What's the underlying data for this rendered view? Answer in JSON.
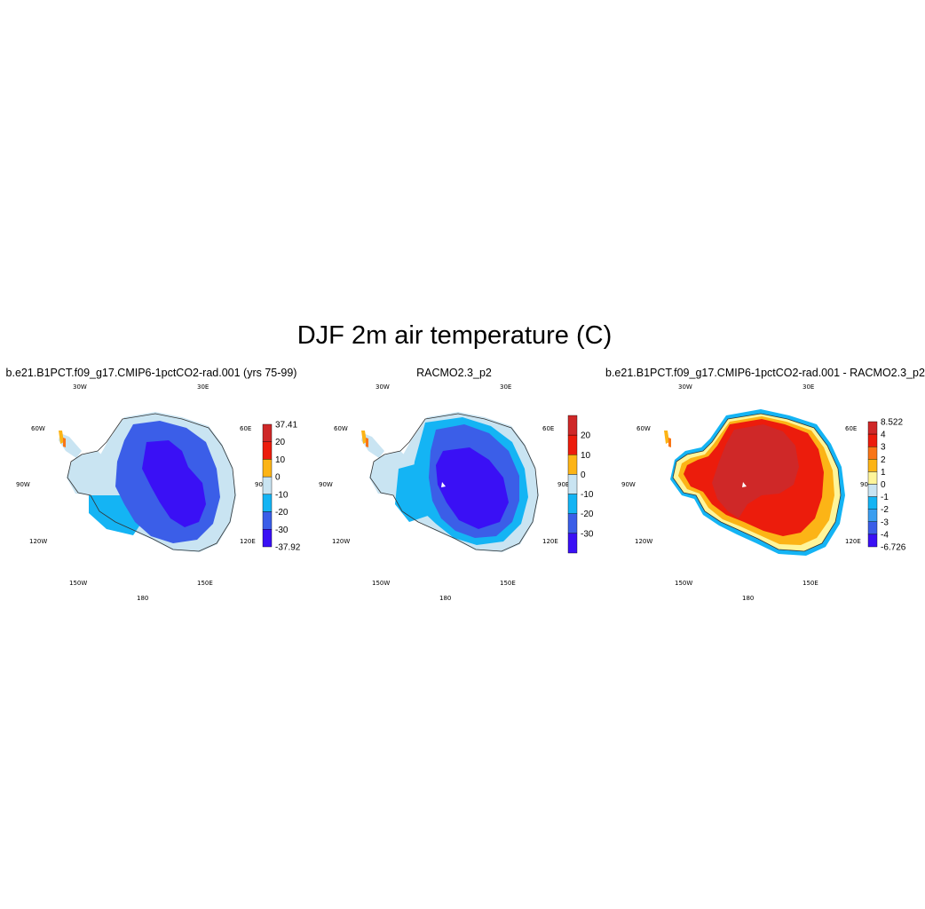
{
  "title": "DJF 2m air temperature (C)",
  "colors": {
    "cool": [
      "#3a10f5",
      "#3b5ee8",
      "#14b4f4",
      "#c9e4f2"
    ],
    "warm": [
      "#fef59a",
      "#fcb416",
      "#f97516",
      "#ec1c0c",
      "#cf2828"
    ]
  },
  "graticule_labels": {
    "lon_30w": "30W",
    "lon_30e": "30E",
    "lon_60w": "60W",
    "lon_60e": "60E",
    "lon_90w": "90W",
    "lon_90e": "90E",
    "lon_120w": "120W",
    "lon_120e": "120E",
    "lon_150w": "150W",
    "lon_150e": "150E",
    "lon_180": "180"
  },
  "panels": [
    {
      "title": "b.e21.B1PCT.f09_g17.CMIP6-1pctCO2-rad.001 (yrs 75-99)",
      "colorbar": {
        "labels": [
          "37.41",
          "20",
          "10",
          "0",
          "-10",
          "-20",
          "-30",
          "-37.92"
        ],
        "box_colors": [
          "#cf2828",
          "#ec1c0c",
          "#fcb416",
          "#c9e4f2",
          "#14b4f4",
          "#3b5ee8",
          "#3a10f5"
        ]
      }
    },
    {
      "title": "RACMO2.3_p2",
      "colorbar": {
        "labels": [
          "20",
          "10",
          "0",
          "-10",
          "-20",
          "-30"
        ],
        "box_colors": [
          "#cf2828",
          "#ec1c0c",
          "#fcb416",
          "#c9e4f2",
          "#14b4f4",
          "#3b5ee8",
          "#3a10f5"
        ]
      }
    },
    {
      "title": "b.e21.B1PCT.f09_g17.CMIP6-1pctCO2-rad.001 - RACMO2.3_p2",
      "colorbar": {
        "labels": [
          "8.522",
          "4",
          "3",
          "2",
          "1",
          "0",
          "-1",
          "-2",
          "-3",
          "-4",
          "-6.726"
        ],
        "box_colors": [
          "#cf2828",
          "#ec1c0c",
          "#f97516",
          "#fcb416",
          "#fef59a",
          "#c9e4f2",
          "#14b4f4",
          "#3b9ef0",
          "#3b5ee8",
          "#3a10f5"
        ]
      }
    }
  ]
}
